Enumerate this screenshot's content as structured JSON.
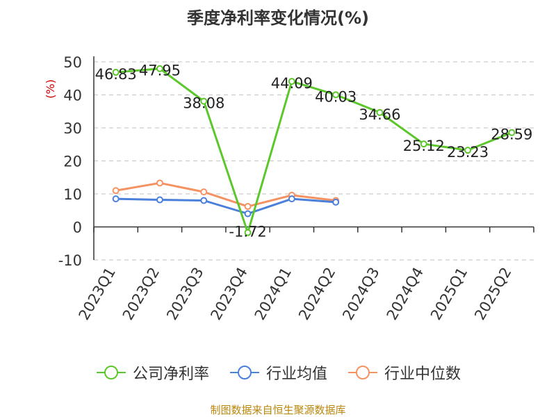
{
  "chart_data": {
    "type": "line",
    "title": "季度净利率变化情况(%)",
    "ylabel": "(%)",
    "ylim": [
      -10,
      50
    ],
    "yticks": [
      -10,
      0,
      10,
      20,
      30,
      40,
      50
    ],
    "grid": true,
    "legend_position": "bottom",
    "categories": [
      "2023Q1",
      "2023Q2",
      "2023Q3",
      "2023Q4",
      "2024Q1",
      "2024Q2",
      "2024Q3",
      "2024Q4",
      "2025Q1",
      "2025Q2"
    ],
    "series": [
      {
        "name": "公司净利率",
        "color": "#5cc72b",
        "labels": true,
        "values": [
          46.83,
          47.95,
          38.08,
          -1.72,
          44.09,
          40.03,
          34.66,
          25.12,
          23.23,
          28.59
        ]
      },
      {
        "name": "行业均值",
        "color": "#4a7fdb",
        "labels": false,
        "values": [
          8.5,
          8.2,
          8.0,
          4.0,
          8.5,
          7.5,
          null,
          null,
          null,
          null
        ]
      },
      {
        "name": "行业中位数",
        "color": "#f59262",
        "labels": false,
        "values": [
          11.0,
          13.3,
          10.6,
          6.2,
          9.6,
          8.0,
          null,
          null,
          null,
          null
        ]
      }
    ]
  },
  "source": "制图数据来自恒生聚源数据库"
}
